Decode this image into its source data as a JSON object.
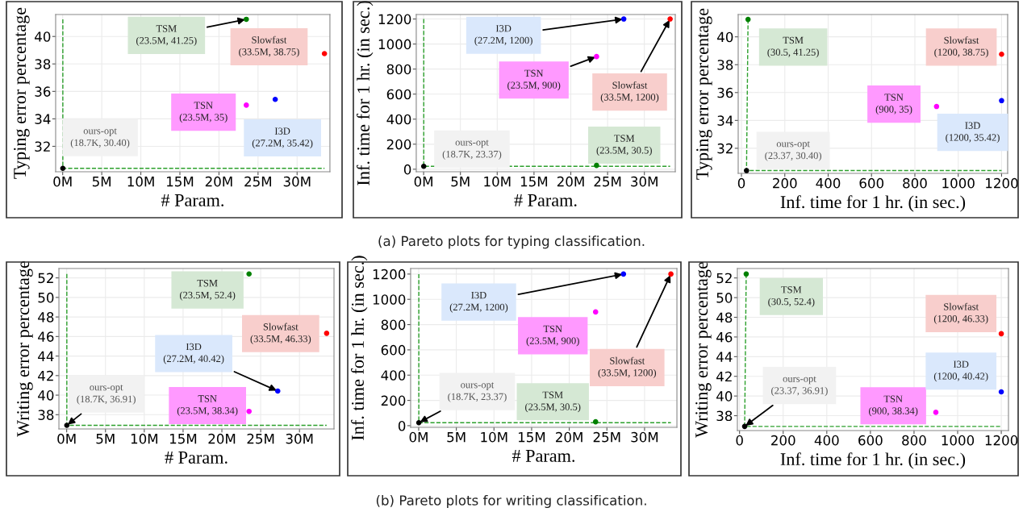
{
  "chart_data": [
    {
      "type": "scatter",
      "xlabel": "# Param.",
      "ylabel": "Typing error percentage",
      "xlim": [
        -0.9,
        34.2
      ],
      "ylim": [
        30.15,
        41.6
      ],
      "xticks": [
        {
          "value": 0,
          "label": "0M"
        },
        {
          "value": 5,
          "label": "5M"
        },
        {
          "value": 10,
          "label": "10M"
        },
        {
          "value": 15,
          "label": "15M"
        },
        {
          "value": 20,
          "label": "20M"
        },
        {
          "value": 25,
          "label": "25M"
        },
        {
          "value": 30,
          "label": "30M"
        }
      ],
      "yticks": [
        32,
        34,
        36,
        38,
        40
      ],
      "grid": true,
      "marker": "circle",
      "series": [
        {
          "color": "#000000",
          "x": [
            0.0187
          ],
          "values": [
            30.4
          ]
        },
        {
          "color": "#008000",
          "x": [
            23.5
          ],
          "values": [
            41.25
          ]
        },
        {
          "color": "#ff00ff",
          "x": [
            23.5
          ],
          "values": [
            35
          ]
        },
        {
          "color": "#0000ff",
          "x": [
            27.2
          ],
          "values": [
            35.42
          ]
        },
        {
          "color": "#ff0000",
          "x": [
            33.5
          ],
          "values": [
            38.75
          ]
        },
        {
          "type": "line",
          "color": "#2ca02c",
          "line_style": "dashed",
          "marker": "none",
          "x": [
            0.0187,
            0.0187,
            33.5
          ],
          "values": [
            41.25,
            30.4,
            30.4
          ]
        }
      ],
      "annotations": [
        {
          "text": "ours-opt\n(18.7K, 30.40)",
          "x": 0.0187,
          "y": 30.4
        },
        {
          "text": "TSM\n(23.5M, 41.25)",
          "x": 23.5,
          "y": 41.25
        },
        {
          "text": "TSN\n(23.5M, 35)",
          "x": 23.5,
          "y": 35
        },
        {
          "text": "I3D\n(27.2M, 35.42)",
          "x": 27.2,
          "y": 35.42
        },
        {
          "text": "Slowfast\n(33.5M, 38.75)",
          "x": 33.5,
          "y": 38.75
        }
      ]
    },
    {
      "type": "scatter",
      "xlabel": "# Param.",
      "ylabel": "Inf. time for 1 hr. (in sec.)",
      "xlim": [
        -1.0,
        34.2
      ],
      "ylim": [
        -20,
        1236
      ],
      "xticks": [
        {
          "value": 0,
          "label": "0M"
        },
        {
          "value": 5,
          "label": "5M"
        },
        {
          "value": 10,
          "label": "10M"
        },
        {
          "value": 15,
          "label": "15M"
        },
        {
          "value": 20,
          "label": "20M"
        },
        {
          "value": 25,
          "label": "25M"
        },
        {
          "value": 30,
          "label": "30M"
        }
      ],
      "yticks": [
        0,
        200,
        400,
        600,
        800,
        1000,
        1200
      ],
      "grid": true,
      "marker": "circle",
      "series": [
        {
          "color": "#000000",
          "x": [
            0.0187
          ],
          "values": [
            23.37
          ]
        },
        {
          "color": "#008000",
          "x": [
            23.5
          ],
          "values": [
            30.5
          ]
        },
        {
          "color": "#ff00ff",
          "x": [
            23.5
          ],
          "values": [
            900
          ]
        },
        {
          "color": "#0000ff",
          "x": [
            27.2
          ],
          "values": [
            1200
          ]
        },
        {
          "color": "#ff0000",
          "x": [
            33.5
          ],
          "values": [
            1200
          ]
        },
        {
          "type": "line",
          "color": "#2ca02c",
          "line_style": "dashed",
          "marker": "none",
          "x": [
            0.0187,
            0.0187,
            33.5
          ],
          "values": [
            1200,
            23.37,
            23.37
          ]
        }
      ],
      "annotations": [
        {
          "text": "ours-opt\n(18.7K, 23.37)",
          "x": 0.0187,
          "y": 23.37
        },
        {
          "text": "TSM\n(23.5M, 30.5)",
          "x": 23.5,
          "y": 30.5
        },
        {
          "text": "TSN\n(23.5M, 900)",
          "x": 23.5,
          "y": 900
        },
        {
          "text": "I3D\n(27.2M, 1200)",
          "x": 27.2,
          "y": 1200
        },
        {
          "text": "Slowfast\n(33.5M, 1200)",
          "x": 33.5,
          "y": 1200
        },
        "(a) Pareto plots for typing classification."
      ]
    },
    {
      "type": "scatter",
      "xlabel": "Inf. time for 1 hr. (in sec.)",
      "ylabel": "Typing error percentage",
      "xlim": [
        -15,
        1228
      ],
      "ylim": [
        30.2,
        41.6
      ],
      "xticks": [
        0,
        200,
        400,
        600,
        800,
        1000,
        1200
      ],
      "yticks": [
        32,
        34,
        36,
        38,
        40
      ],
      "grid": true,
      "marker": "circle",
      "series": [
        {
          "color": "#000000",
          "x": [
            23.37
          ],
          "values": [
            30.4
          ]
        },
        {
          "color": "#008000",
          "x": [
            30.5
          ],
          "values": [
            41.25
          ]
        },
        {
          "color": "#ff00ff",
          "x": [
            900
          ],
          "values": [
            35
          ]
        },
        {
          "color": "#0000ff",
          "x": [
            1200
          ],
          "values": [
            35.42
          ]
        },
        {
          "color": "#ff0000",
          "x": [
            1200
          ],
          "values": [
            38.75
          ]
        },
        {
          "type": "line",
          "color": "#2ca02c",
          "line_style": "dashed",
          "marker": "none",
          "x": [
            30.5,
            23.37,
            1200
          ],
          "values": [
            41.25,
            30.4,
            30.4
          ]
        }
      ],
      "annotations": [
        {
          "text": "ours-opt\n(23.37, 30.40)",
          "x": 23.37,
          "y": 30.4
        },
        {
          "text": "TSM\n(30.5, 41.25)",
          "x": 30.5,
          "y": 41.25
        },
        {
          "text": "TSN\n(900, 35)",
          "x": 900,
          "y": 35
        },
        {
          "text": "I3D\n(1200, 35.42)",
          "x": 1200,
          "y": 35.42
        },
        {
          "text": "Slowfast\n(1200, 38.75)",
          "x": 1200,
          "y": 38.75
        }
      ]
    },
    {
      "type": "scatter",
      "xlabel": "# Param.",
      "ylabel": "Writing error percentage",
      "xlim": [
        -1.0,
        34.45
      ],
      "ylim": [
        36.54,
        52.96
      ],
      "xticks": [
        {
          "value": 0,
          "label": "0M"
        },
        {
          "value": 5,
          "label": "5M"
        },
        {
          "value": 10,
          "label": "10M"
        },
        {
          "value": 15,
          "label": "15M"
        },
        {
          "value": 20,
          "label": "20M"
        },
        {
          "value": 25,
          "label": "25M"
        },
        {
          "value": 30,
          "label": "30M"
        }
      ],
      "yticks": [
        38,
        40,
        42,
        44,
        46,
        48,
        50,
        52
      ],
      "grid": true,
      "marker": "circle",
      "series": [
        {
          "color": "#000000",
          "x": [
            0.0187
          ],
          "values": [
            36.91
          ]
        },
        {
          "color": "#008000",
          "x": [
            23.5
          ],
          "values": [
            52.4
          ]
        },
        {
          "color": "#ff00ff",
          "x": [
            23.5
          ],
          "values": [
            38.34
          ]
        },
        {
          "color": "#0000ff",
          "x": [
            27.2
          ],
          "values": [
            40.42
          ]
        },
        {
          "color": "#ff0000",
          "x": [
            33.5
          ],
          "values": [
            46.33
          ]
        },
        {
          "type": "line",
          "color": "#2ca02c",
          "line_style": "dashed",
          "marker": "none",
          "x": [
            0.0187,
            0.0187,
            33.5
          ],
          "values": [
            52.4,
            36.91,
            36.91
          ]
        }
      ],
      "annotations": [
        {
          "text": "ours-opt\n(18.7K, 36.91)",
          "x": 0.0187,
          "y": 36.91
        },
        {
          "text": "TSM\n(23.5M, 52.4)",
          "x": 23.5,
          "y": 52.4
        },
        {
          "text": "TSN\n(23.5M, 38.34)",
          "x": 23.5,
          "y": 38.34
        },
        {
          "text": "I3D\n(27.2M, 40.42)",
          "x": 27.2,
          "y": 40.42
        },
        {
          "text": "Slowfast\n(33.5M, 46.33)",
          "x": 33.5,
          "y": 46.33
        }
      ]
    },
    {
      "type": "scatter",
      "xlabel": "# Param.",
      "ylabel": "Inf. time for 1 hr. (in sec.)",
      "xlim": [
        -1.07,
        34.3
      ],
      "ylim": [
        -13,
        1244
      ],
      "xticks": [
        {
          "value": 0,
          "label": "0M"
        },
        {
          "value": 5,
          "label": "5M"
        },
        {
          "value": 10,
          "label": "10M"
        },
        {
          "value": 15,
          "label": "15M"
        },
        {
          "value": 20,
          "label": "20M"
        },
        {
          "value": 25,
          "label": "25M"
        },
        {
          "value": 30,
          "label": "30M"
        }
      ],
      "yticks": [
        0,
        200,
        400,
        600,
        800,
        1000,
        1200
      ],
      "grid": true,
      "marker": "circle",
      "series": [
        {
          "color": "#000000",
          "x": [
            0.0187
          ],
          "values": [
            23.37
          ]
        },
        {
          "color": "#008000",
          "x": [
            23.5
          ],
          "values": [
            30.5
          ]
        },
        {
          "color": "#ff00ff",
          "x": [
            23.5
          ],
          "values": [
            900
          ]
        },
        {
          "color": "#0000ff",
          "x": [
            27.2
          ],
          "values": [
            1200
          ]
        },
        {
          "color": "#ff0000",
          "x": [
            33.5
          ],
          "values": [
            1200
          ]
        },
        {
          "type": "line",
          "color": "#2ca02c",
          "line_style": "dashed",
          "marker": "none",
          "x": [
            0.0187,
            0.0187,
            33.5
          ],
          "values": [
            1200,
            23.37,
            23.37
          ]
        }
      ],
      "annotations": [
        {
          "text": "ours-opt\n(18.7K, 23.37)",
          "x": 0.0187,
          "y": 23.37
        },
        {
          "text": "TSM\n(23.5M, 30.5)",
          "x": 23.5,
          "y": 30.5
        },
        {
          "text": "TSN\n(23.5M, 900)",
          "x": 23.5,
          "y": 900
        },
        {
          "text": "I3D\n(27.2M, 1200)",
          "x": 27.2,
          "y": 1200
        },
        {
          "text": "Slowfast\n(33.5M, 1200)",
          "x": 33.5,
          "y": 1200
        },
        "(b) Pareto plots for writing classification."
      ]
    },
    {
      "type": "scatter",
      "xlabel": "Inf. time for 1 hr. (in sec.)",
      "ylabel": "Writing error percentage",
      "xlim": [
        -10,
        1233
      ],
      "ylim": [
        36.49,
        52.96
      ],
      "xticks": [
        0,
        200,
        400,
        600,
        800,
        1000,
        1200
      ],
      "yticks": [
        38,
        40,
        42,
        44,
        46,
        48,
        50,
        52
      ],
      "grid": true,
      "marker": "circle",
      "series": [
        {
          "color": "#000000",
          "x": [
            23.37
          ],
          "values": [
            36.91
          ]
        },
        {
          "color": "#008000",
          "x": [
            30.5
          ],
          "values": [
            52.4
          ]
        },
        {
          "color": "#ff00ff",
          "x": [
            900
          ],
          "values": [
            38.34
          ]
        },
        {
          "color": "#0000ff",
          "x": [
            1200
          ],
          "values": [
            40.42
          ]
        },
        {
          "color": "#ff0000",
          "x": [
            1200
          ],
          "values": [
            46.33
          ]
        },
        {
          "type": "line",
          "color": "#2ca02c",
          "line_style": "dashed",
          "marker": "none",
          "x": [
            30.5,
            23.37,
            1200
          ],
          "values": [
            52.4,
            36.91,
            36.91
          ]
        }
      ],
      "annotations": [
        {
          "text": "ours-opt\n(23.37, 36.91)",
          "x": 23.37,
          "y": 36.91
        },
        {
          "text": "TSM\n(30.5, 52.4)",
          "x": 30.5,
          "y": 52.4
        },
        {
          "text": "TSN\n(900, 38.34)",
          "x": 900,
          "y": 38.34
        },
        {
          "text": "I3D\n(1200, 40.42)",
          "x": 1200,
          "y": 40.42
        },
        {
          "text": "Slowfast\n(1200, 46.33)",
          "x": 1200,
          "y": 46.33
        }
      ]
    }
  ]
}
